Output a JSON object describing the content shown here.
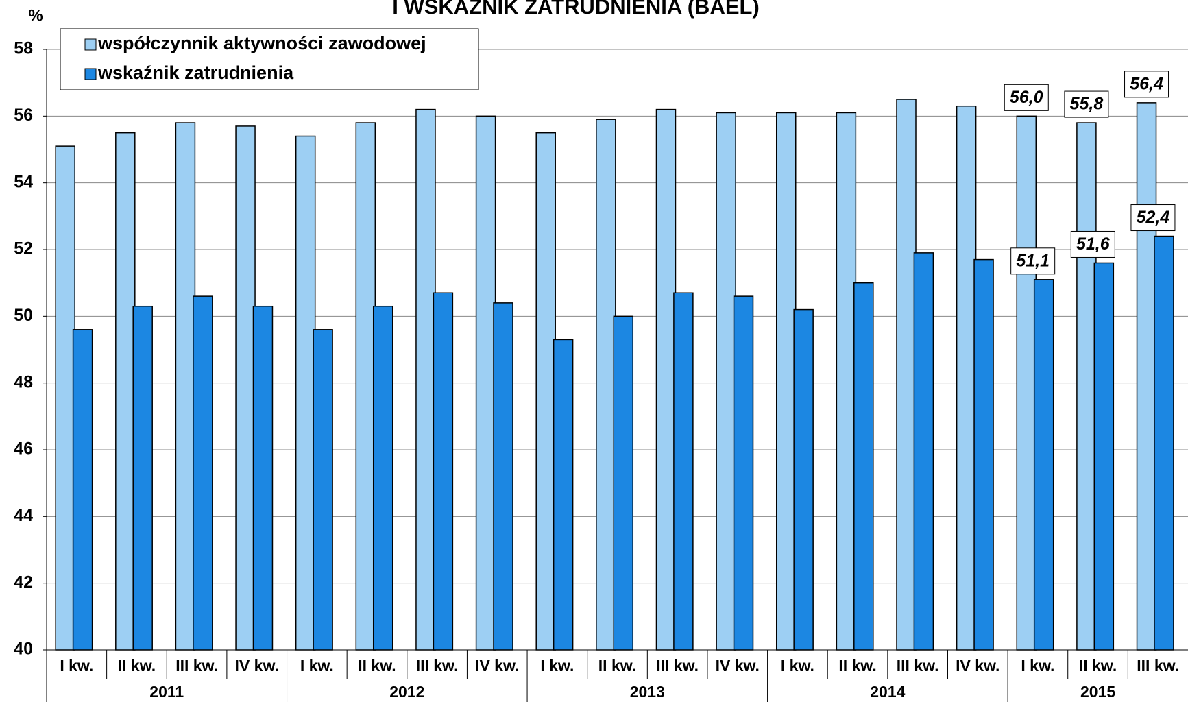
{
  "chart_data": {
    "type": "bar",
    "title": "I WSKAŹNIK ZATRUDNIENIA (BAEL)",
    "y_label": "%",
    "categories": [
      "I kw.",
      "II kw.",
      "III kw.",
      "IV kw.",
      "I kw.",
      "II kw.",
      "III kw.",
      "IV kw.",
      "I kw.",
      "II kw.",
      "III kw.",
      "IV kw.",
      "I kw.",
      "II kw.",
      "III kw.",
      "IV kw.",
      "I kw.",
      "II kw.",
      "III kw."
    ],
    "years": [
      "2011",
      null,
      null,
      null,
      "2012",
      null,
      null,
      null,
      "2013",
      null,
      null,
      null,
      "2014",
      null,
      null,
      null,
      "2015",
      null,
      null
    ],
    "series": [
      {
        "name": "współczynnik aktywności zawodowej",
        "color": "#9dcff3",
        "values": [
          55.1,
          55.5,
          55.8,
          55.7,
          55.4,
          55.8,
          56.2,
          56.0,
          55.5,
          55.9,
          56.2,
          56.1,
          56.1,
          56.1,
          56.5,
          56.3,
          56.0,
          55.8,
          56.4
        ],
        "value_labels": [
          null,
          null,
          null,
          null,
          null,
          null,
          null,
          null,
          null,
          null,
          null,
          null,
          null,
          null,
          null,
          null,
          "56,0",
          "55,8",
          "56,4"
        ]
      },
      {
        "name": "wskaźnik zatrudnienia",
        "color": "#1c87e2",
        "values": [
          49.6,
          50.3,
          50.6,
          50.3,
          49.6,
          50.3,
          50.7,
          50.4,
          49.3,
          50.0,
          50.7,
          50.6,
          50.2,
          51.0,
          51.9,
          51.7,
          51.1,
          51.6,
          52.4
        ],
        "value_labels": [
          null,
          null,
          null,
          null,
          null,
          null,
          null,
          null,
          null,
          null,
          null,
          null,
          null,
          null,
          null,
          null,
          "51,1",
          "51,6",
          "52,4"
        ]
      }
    ],
    "ylim": [
      40,
      58
    ],
    "yticks": [
      40,
      42,
      44,
      46,
      48,
      50,
      52,
      54,
      56,
      58
    ],
    "grid": true,
    "legend": "top-left"
  }
}
